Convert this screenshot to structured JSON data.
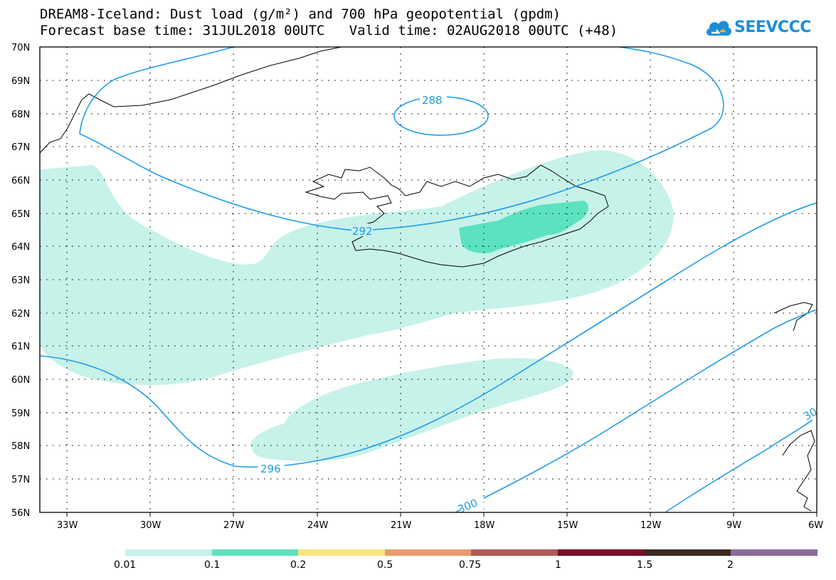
{
  "title_line1": "DREAM8-Iceland: Dust load (g/m²) and 700 hPa geopotential (gpdm)",
  "title_line2": "Forecast base time: 31JUL2018 00UTC   Valid time: 02AUG2018 00UTC (+48)",
  "logo": {
    "text": "SEEVCCC",
    "icon": "cloud-logo-icon"
  },
  "lat_labels": [
    "70N",
    "69N",
    "68N",
    "67N",
    "66N",
    "65N",
    "64N",
    "63N",
    "62N",
    "61N",
    "60N",
    "59N",
    "58N",
    "57N",
    "56N"
  ],
  "lon_labels": [
    "33W",
    "30W",
    "27W",
    "24W",
    "21W",
    "18W",
    "15W",
    "12W",
    "9W",
    "6W"
  ],
  "contour_labels": {
    "c288": "288",
    "c292": "292",
    "c296": "296",
    "c300": "300",
    "c300b": "30"
  },
  "legend": {
    "labels": [
      "0.01",
      "0.1",
      "0.2",
      "0.5",
      "0.75",
      "1",
      "1.5",
      "2"
    ],
    "colors": [
      "#c6f2ea",
      "#5ce2c1",
      "#f7e87c",
      "#ea9a6c",
      "#b05a55",
      "#7a0b2b",
      "#3a2a20",
      "#8e6a9c"
    ]
  },
  "colors": {
    "contour": "#1f9ce8",
    "dust_light": "#c6f2ea",
    "dust_mid": "#5ce2c1"
  }
}
